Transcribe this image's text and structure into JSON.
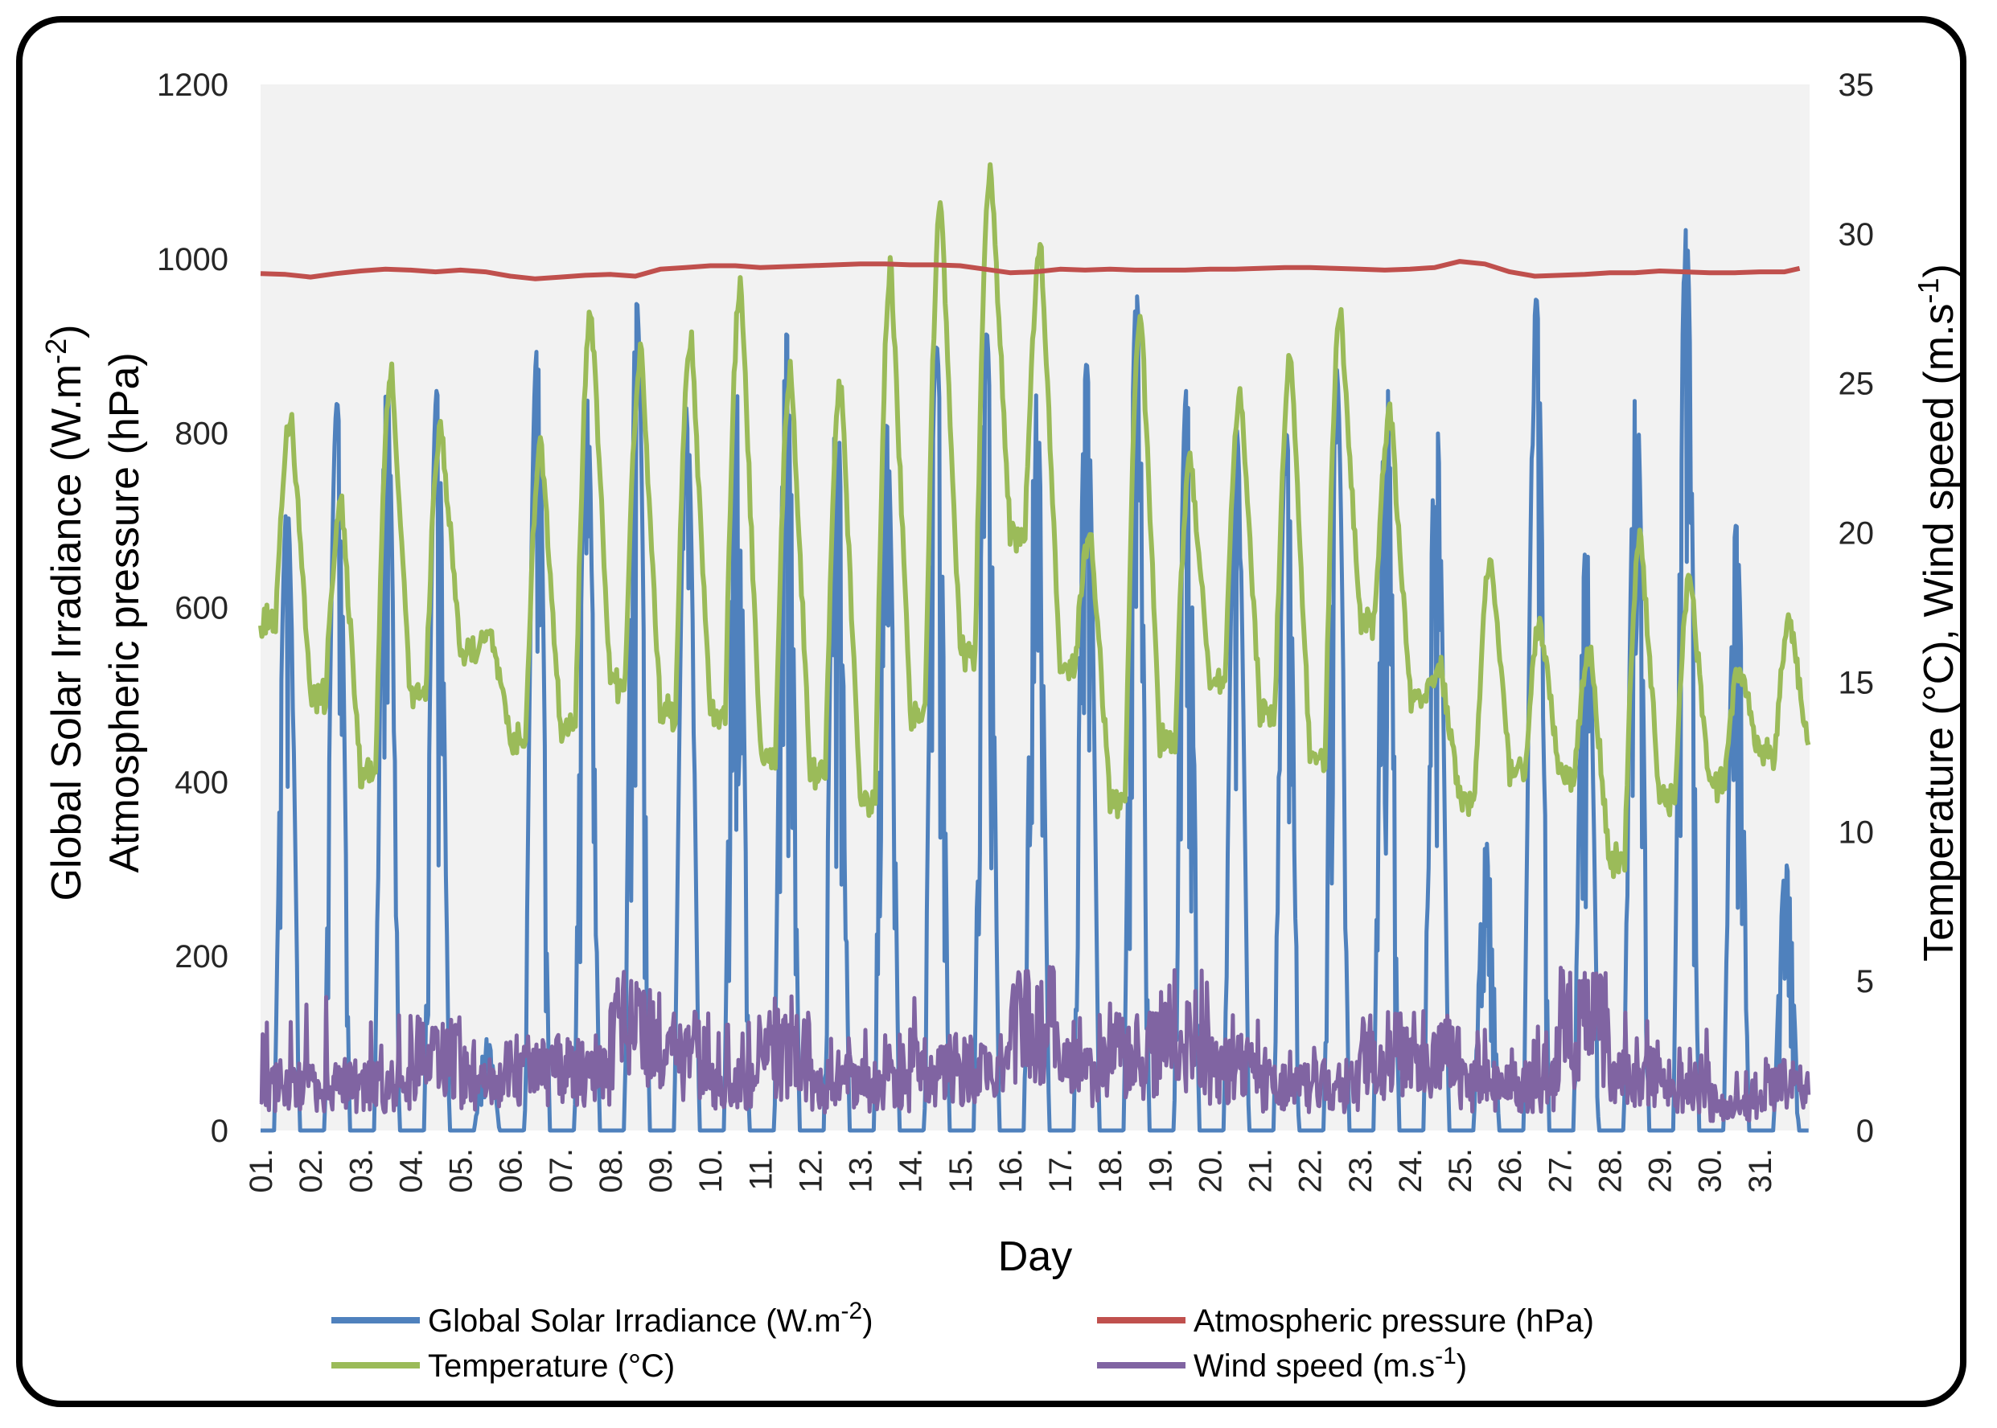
{
  "chart_data": {
    "type": "line",
    "x_axis": {
      "title": "Day",
      "tick_labels": [
        "01.",
        "02.",
        "03.",
        "04.",
        "05.",
        "06.",
        "07.",
        "08.",
        "09.",
        "10.",
        "11.",
        "12.",
        "13.",
        "14.",
        "15.",
        "16.",
        "17.",
        "18.",
        "19.",
        "20.",
        "21.",
        "22.",
        "23.",
        "24.",
        "25.",
        "26.",
        "27.",
        "28.",
        "29.",
        "30.",
        "31."
      ],
      "range": [
        1,
        32
      ]
    },
    "y_axis_left": {
      "title_line1": "Global Solar Irradiance (W.m",
      "title_line1_sup": "-2",
      "title_line1_end": ")",
      "title_line2": "Atmospheric pressure (hPa)",
      "range": [
        0,
        1200
      ],
      "ticks": [
        0,
        200,
        400,
        600,
        800,
        1000,
        1200
      ]
    },
    "y_axis_right": {
      "title_main": "Temperature (°C), Wind speed (m.s",
      "title_sup": "-1",
      "title_end": ")",
      "range": [
        0,
        35
      ],
      "ticks": [
        0,
        5,
        10,
        15,
        20,
        25,
        30,
        35
      ]
    },
    "legend": {
      "placement": "bottom",
      "items": [
        {
          "key": "irradiance",
          "label": "Global Solar Irradiance (W.m",
          "sup": "-2",
          "end": ")"
        },
        {
          "key": "pressure",
          "label": "Atmospheric pressure (hPa)",
          "sup": "",
          "end": ""
        },
        {
          "key": "temperature",
          "label": "Temperature (°C)",
          "sup": "",
          "end": ""
        },
        {
          "key": "wind",
          "label": "Wind speed (m.s",
          "sup": "-1",
          "end": ")"
        }
      ]
    },
    "colors": {
      "irradiance": "#4f81bd",
      "pressure": "#c0504d",
      "temperature": "#9bbb59",
      "wind": "#8064a2",
      "plot_background": "#f2f2f2"
    },
    "series": [
      {
        "key": "irradiance",
        "name": "Global Solar Irradiance (W.m-2)",
        "axis": "left",
        "daily_peak": [
          720,
          835,
          860,
          850,
          105,
          895,
          840,
          950,
          830,
          845,
          915,
          845,
          810,
          900,
          915,
          845,
          880,
          960,
          850,
          805,
          800,
          875,
          870,
          820,
          330,
          955,
          675,
          855,
          1035,
          695,
          305
        ]
      },
      {
        "key": "pressure",
        "name": "Atmospheric pressure (hPa)",
        "axis": "left",
        "x": [
          1,
          1.5,
          2,
          2.5,
          3,
          3.5,
          4,
          4.5,
          5,
          5.5,
          6,
          6.5,
          7,
          7.5,
          8,
          8.5,
          9,
          9.5,
          10,
          10.5,
          11,
          11.5,
          12,
          12.5,
          13,
          13.5,
          14,
          14.5,
          15,
          15.5,
          16,
          16.5,
          17,
          17.5,
          18,
          18.5,
          19,
          19.5,
          20,
          20.5,
          21,
          21.5,
          22,
          22.5,
          23,
          23.5,
          24,
          24.5,
          25,
          25.5,
          26,
          26.5,
          27,
          27.5,
          28,
          28.5,
          29,
          29.5,
          30,
          30.5,
          31,
          31.5,
          31.8
        ],
        "values": [
          983,
          982,
          979,
          983,
          986,
          988,
          987,
          985,
          987,
          985,
          980,
          977,
          979,
          981,
          982,
          980,
          988,
          990,
          992,
          992,
          990,
          991,
          992,
          993,
          994,
          994,
          993,
          993,
          992,
          988,
          984,
          985,
          988,
          987,
          988,
          987,
          987,
          987,
          988,
          988,
          989,
          990,
          990,
          989,
          988,
          987,
          988,
          990,
          997,
          994,
          985,
          980,
          981,
          982,
          984,
          984,
          986,
          985,
          984,
          984,
          985,
          985,
          989
        ]
      },
      {
        "key": "temperature",
        "name": "Temperature (°C)",
        "axis": "right",
        "daily_min": [
          17,
          14.5,
          12,
          14.5,
          16,
          13,
          13.5,
          15,
          14,
          14,
          12.5,
          12,
          11,
          14,
          16,
          20,
          15.5,
          11,
          13,
          15,
          14,
          12.5,
          17,
          14.5,
          11,
          12,
          12,
          9,
          11,
          11.5,
          12.5
        ],
        "daily_max": [
          24,
          21,
          25.5,
          23.5,
          16.5,
          23,
          27.5,
          26,
          26.5,
          28.5,
          25.5,
          25,
          29,
          31,
          32.2,
          29.5,
          20,
          27.5,
          22.5,
          24.5,
          26,
          27.5,
          24,
          15.5,
          19,
          17,
          16,
          20,
          18.5,
          15.5,
          17
        ]
      },
      {
        "key": "wind",
        "name": "Wind speed (m.s-1)",
        "axis": "right",
        "daily_max": [
          4.5,
          5,
          4,
          3.5,
          3,
          3,
          3.5,
          5,
          4,
          4,
          4.5,
          3.5,
          3.5,
          4.5,
          4,
          5.5,
          4,
          4.5,
          5.5,
          4.5,
          3,
          3.5,
          4,
          4,
          4,
          3.5,
          5.5,
          4,
          3.5,
          2,
          3
        ],
        "daily_mean": [
          1.5,
          1.5,
          1.5,
          2.5,
          1.5,
          2,
          2,
          3.5,
          2.5,
          1.5,
          2.5,
          1.5,
          1.5,
          2,
          2,
          3.5,
          2,
          2.5,
          3,
          2,
          1.5,
          1.5,
          2.5,
          2.5,
          1.5,
          1.5,
          3.5,
          2,
          1.5,
          0.8,
          1.5
        ]
      }
    ]
  }
}
